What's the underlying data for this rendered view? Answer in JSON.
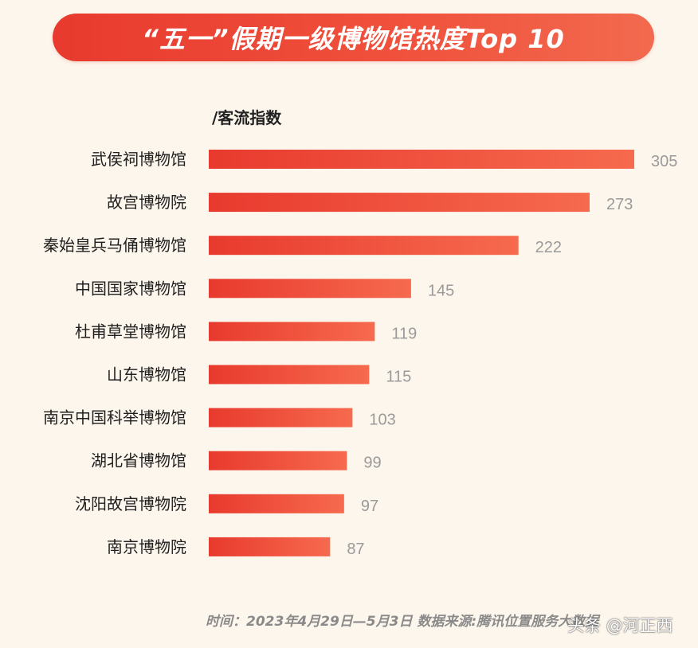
{
  "header": {
    "title": "“五一”假期一级博物馆热度Top 10"
  },
  "colors": {
    "bar_start": "#e83a2e",
    "bar_end": "#f66a4e",
    "background": "#fdf6ec",
    "value_label": "#9a9a9a",
    "category_label": "#1f1f1f"
  },
  "chart_data": {
    "type": "bar",
    "orientation": "horizontal",
    "title": "“五一”假期一级博物馆热度Top 10",
    "unit_label": "/客流指数",
    "categories": [
      "武侯祠博物馆",
      "故宫博物院",
      "秦始皇兵马俑博物馆",
      "中国国家博物馆",
      "杜甫草堂博物馆",
      "山东博物馆",
      "南京中国科举博物馆",
      "湖北省博物馆",
      "沈阳故宫博物院",
      "南京博物院"
    ],
    "values": [
      305,
      273,
      222,
      145,
      119,
      115,
      103,
      99,
      97,
      87
    ],
    "xlim": [
      0,
      305
    ],
    "grid": false,
    "legend": "none"
  },
  "footer": {
    "source_text": "时间：2023年4月29日—5月3日  数据来源:腾讯位置服务大数据"
  },
  "watermark": {
    "text": "头条 @河正西"
  }
}
